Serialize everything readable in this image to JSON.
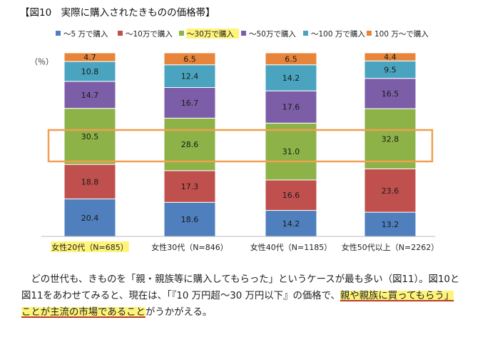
{
  "figure_title": "【図10　実際に購入されたきものの価格帯】",
  "chart_data": {
    "type": "bar",
    "stacked": true,
    "normalized": true,
    "unit_label": "（％）",
    "categories": [
      "女性20代（N=685）",
      "女性30代（N=846）",
      "女性40代（N=1185）",
      "女性50代以上（N=2262）"
    ],
    "highlighted_category_index": 0,
    "highlighted_series_index": 2,
    "series": [
      {
        "name": "～5 万で購入",
        "color": "#4f7fbd",
        "values": [
          20.4,
          18.6,
          14.2,
          13.2
        ]
      },
      {
        "name": "～10万で購入",
        "color": "#c0504d",
        "values": [
          18.8,
          17.3,
          16.6,
          23.6
        ]
      },
      {
        "name": "～30万で購入",
        "color": "#8cb248",
        "values": [
          30.5,
          28.6,
          31.0,
          32.8
        ]
      },
      {
        "name": "～50万で購入",
        "color": "#7b5ea7",
        "values": [
          14.7,
          16.7,
          17.6,
          16.5
        ]
      },
      {
        "name": "～100 万で購入",
        "color": "#4aa3bf",
        "values": [
          10.8,
          12.4,
          14.2,
          9.5
        ]
      },
      {
        "name": "100 万～で購入",
        "color": "#e8853a",
        "values": [
          4.7,
          6.5,
          6.5,
          4.4
        ]
      }
    ],
    "highlight_box_color": "#f0a050",
    "label_highlight_color": "#fff47a"
  },
  "paragraph": {
    "line1": "　どの世代も、きものを「親・親族等に購入してもらった」というケースが最も多い（図11）。図10と",
    "line2_a": "図11をあわせてみると、現在は、「『10 万円超～30 万円以下』の価格で、",
    "line2_b": "親や親族に買ってもらう」",
    "line3_a": "ことが主流の市場であること",
    "line3_b": "がうかがえる。"
  }
}
